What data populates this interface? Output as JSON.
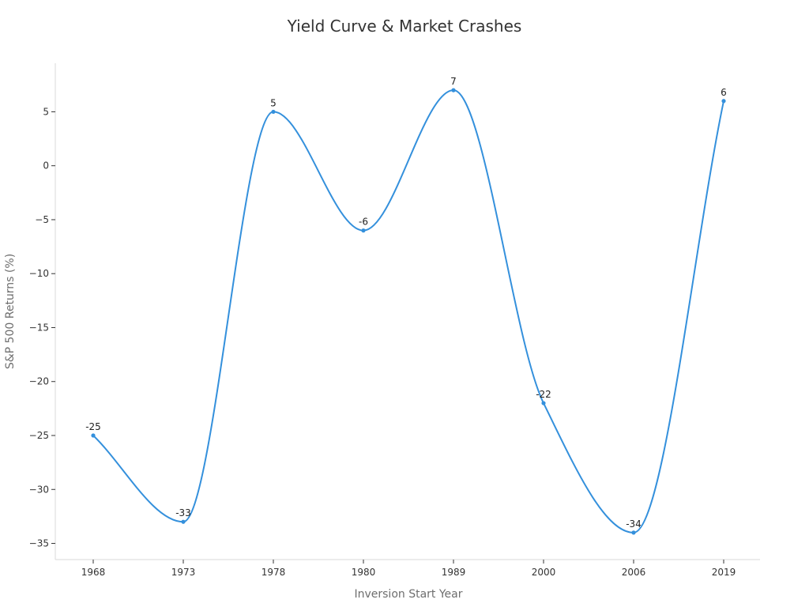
{
  "chart_data": {
    "type": "line",
    "title": "Yield Curve & Market Crashes",
    "xlabel": "Inversion Start Year",
    "ylabel": "S&P 500 Returns (%)",
    "categories": [
      "1968",
      "1973",
      "1978",
      "1980",
      "1989",
      "2000",
      "2006",
      "2019"
    ],
    "series": [
      {
        "values": [
          -25,
          -33,
          5,
          -6,
          7,
          -22,
          -34,
          6
        ]
      }
    ],
    "data_labels": [
      "-25",
      "-33",
      "5",
      "-6",
      "7",
      "-22",
      "-34",
      "6"
    ],
    "yticks": [
      5,
      0,
      -5,
      -10,
      -15,
      -20,
      -25,
      -30,
      -35
    ],
    "ytick_labels": [
      "5",
      "0",
      "−5",
      "−10",
      "−15",
      "−20",
      "−25",
      "−30",
      "−35"
    ],
    "ylim": [
      -36.5,
      9.5
    ],
    "grid": false,
    "legend": "none",
    "colors": {
      "line": "#3490dc",
      "point": "#3490dc"
    }
  }
}
